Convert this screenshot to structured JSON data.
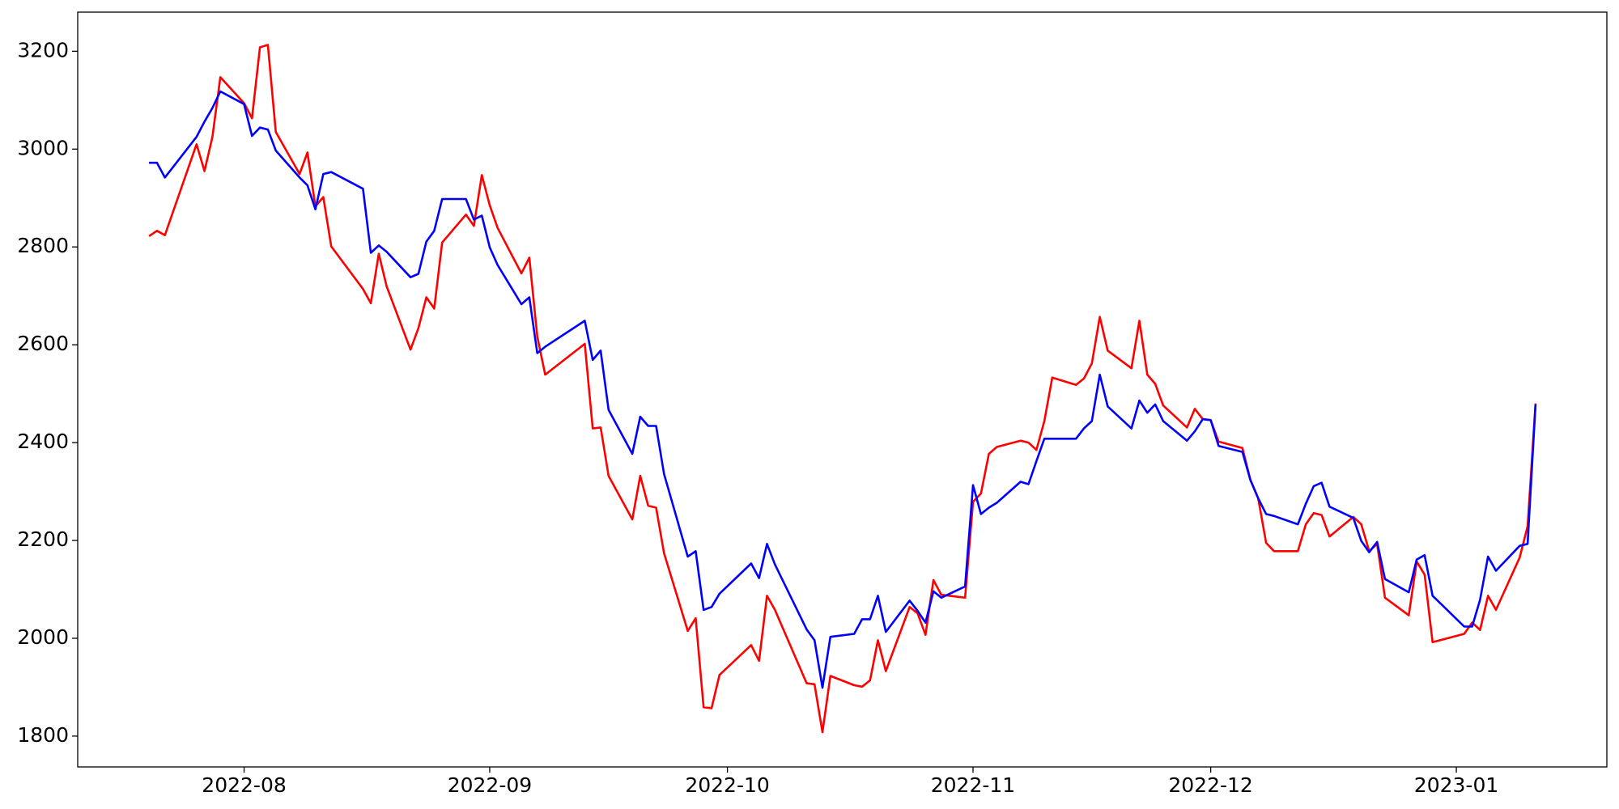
{
  "chart_data": {
    "type": "line",
    "x": [
      "2022-07-20",
      "2022-07-21",
      "2022-07-22",
      "2022-07-26",
      "2022-07-27",
      "2022-07-28",
      "2022-07-29",
      "2022-08-01",
      "2022-08-02",
      "2022-08-03",
      "2022-08-04",
      "2022-08-05",
      "2022-08-08",
      "2022-08-09",
      "2022-08-10",
      "2022-08-11",
      "2022-08-12",
      "2022-08-16",
      "2022-08-17",
      "2022-08-18",
      "2022-08-19",
      "2022-08-22",
      "2022-08-23",
      "2022-08-24",
      "2022-08-25",
      "2022-08-26",
      "2022-08-29",
      "2022-08-30",
      "2022-08-31",
      "2022-09-01",
      "2022-09-02",
      "2022-09-05",
      "2022-09-06",
      "2022-09-07",
      "2022-09-08",
      "2022-09-13",
      "2022-09-14",
      "2022-09-15",
      "2022-09-16",
      "2022-09-19",
      "2022-09-20",
      "2022-09-21",
      "2022-09-22",
      "2022-09-23",
      "2022-09-26",
      "2022-09-27",
      "2022-09-28",
      "2022-09-29",
      "2022-09-30",
      "2022-10-04",
      "2022-10-05",
      "2022-10-06",
      "2022-10-07",
      "2022-10-11",
      "2022-10-12",
      "2022-10-13",
      "2022-10-14",
      "2022-10-17",
      "2022-10-18",
      "2022-10-19",
      "2022-10-20",
      "2022-10-21",
      "2022-10-24",
      "2022-10-25",
      "2022-10-26",
      "2022-10-27",
      "2022-10-28",
      "2022-10-31",
      "2022-11-01",
      "2022-11-02",
      "2022-11-03",
      "2022-11-04",
      "2022-11-07",
      "2022-11-08",
      "2022-11-09",
      "2022-11-10",
      "2022-11-11",
      "2022-11-14",
      "2022-11-15",
      "2022-11-16",
      "2022-11-17",
      "2022-11-18",
      "2022-11-21",
      "2022-11-22",
      "2022-11-23",
      "2022-11-24",
      "2022-11-25",
      "2022-11-28",
      "2022-11-29",
      "2022-11-30",
      "2022-12-01",
      "2022-12-02",
      "2022-12-05",
      "2022-12-06",
      "2022-12-07",
      "2022-12-08",
      "2022-12-09",
      "2022-12-12",
      "2022-12-13",
      "2022-12-14",
      "2022-12-15",
      "2022-12-16",
      "2022-12-19",
      "2022-12-20",
      "2022-12-21",
      "2022-12-22",
      "2022-12-23",
      "2022-12-26",
      "2022-12-27",
      "2022-12-28",
      "2022-12-29",
      "2023-01-02",
      "2023-01-03",
      "2023-01-04",
      "2023-01-05",
      "2023-01-06",
      "2023-01-09",
      "2023-01-10",
      "2023-01-11"
    ],
    "series": [
      {
        "color": "#ff0000",
        "values": [
          2822,
          2833,
          2824,
          3010,
          2955,
          3025,
          3147,
          3094,
          3063,
          3208,
          3213,
          3035,
          2949,
          2993,
          2883,
          2902,
          2801,
          2714,
          2685,
          2786,
          2719,
          2590,
          2634,
          2697,
          2674,
          2809,
          2866,
          2843,
          2947,
          2885,
          2839,
          2746,
          2778,
          2617,
          2539,
          2602,
          2429,
          2431,
          2332,
          2243,
          2332,
          2271,
          2267,
          2174,
          2015,
          2041,
          1859,
          1857,
          1925,
          1986,
          1954,
          2087,
          2058,
          1908,
          1906,
          1808,
          1923,
          1904,
          1901,
          1914,
          1996,
          1933,
          2064,
          2051,
          2007,
          2119,
          2089,
          2083,
          2279,
          2296,
          2377,
          2391,
          2404,
          2400,
          2385,
          2444,
          2533,
          2518,
          2531,
          2562,
          2657,
          2588,
          2552,
          2649,
          2539,
          2520,
          2476,
          2431,
          2469,
          2448,
          2446,
          2402,
          2389,
          2324,
          2286,
          2195,
          2178,
          2178,
          2233,
          2256,
          2252,
          2208,
          2248,
          2233,
          2178,
          2193,
          2083,
          2047,
          2157,
          2130,
          1992,
          2009,
          2032,
          2017,
          2087,
          2058,
          2165,
          2229,
          2480
        ]
      },
      {
        "color": "#0000ff",
        "values": [
          2972,
          2972,
          2942,
          3025,
          3056,
          3084,
          3118,
          3092,
          3027,
          3044,
          3040,
          2997,
          2942,
          2926,
          2877,
          2949,
          2953,
          2919,
          2788,
          2803,
          2790,
          2738,
          2745,
          2811,
          2833,
          2898,
          2898,
          2856,
          2864,
          2799,
          2763,
          2683,
          2697,
          2583,
          2596,
          2649,
          2569,
          2588,
          2467,
          2377,
          2453,
          2434,
          2434,
          2336,
          2167,
          2178,
          2058,
          2064,
          2091,
          2153,
          2123,
          2193,
          2151,
          2018,
          1996,
          1899,
          2003,
          2009,
          2039,
          2039,
          2087,
          2013,
          2077,
          2056,
          2032,
          2096,
          2083,
          2106,
          2313,
          2254,
          2267,
          2277,
          2320,
          2315,
          2362,
          2408,
          2408,
          2408,
          2429,
          2444,
          2539,
          2474,
          2429,
          2486,
          2461,
          2478,
          2444,
          2404,
          2423,
          2448,
          2446,
          2393,
          2381,
          2324,
          2286,
          2254,
          2250,
          2233,
          2275,
          2311,
          2318,
          2269,
          2246,
          2199,
          2176,
          2197,
          2121,
          2094,
          2161,
          2170,
          2087,
          2024,
          2024,
          2079,
          2167,
          2138,
          2189,
          2193,
          2478
        ]
      }
    ],
    "xlim": [
      "2022-07-11",
      "2023-01-20"
    ],
    "xticks": [
      {
        "value": "2022-08-01",
        "label": "2022-08"
      },
      {
        "value": "2022-09-01",
        "label": "2022-09"
      },
      {
        "value": "2022-10-01",
        "label": "2022-10"
      },
      {
        "value": "2022-11-01",
        "label": "2022-11"
      },
      {
        "value": "2022-12-01",
        "label": "2022-12"
      },
      {
        "value": "2023-01-01",
        "label": "2023-01"
      }
    ],
    "ylim": [
      1737,
      3280
    ],
    "yticks": [
      1800,
      2000,
      2200,
      2400,
      2600,
      2800,
      3000,
      3200
    ],
    "grid": false
  }
}
